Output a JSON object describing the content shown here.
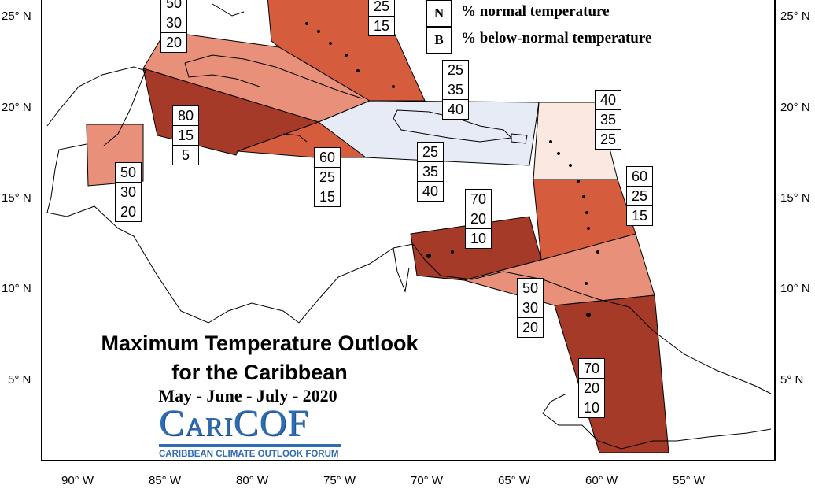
{
  "map": {
    "title_line1": "Maximum Temperature Outlook",
    "title_line2": "for the Caribbean",
    "period": "May - June - July - 2020",
    "logo_name": "CariCOF",
    "logo_tagline": "CARIBBEAN CLIMATE OUTLOOK FORUM",
    "legend": [
      {
        "key": "N",
        "label": "% normal temperature"
      },
      {
        "key": "B",
        "label": "% below-normal temperature"
      }
    ],
    "lat_labels": [
      "25° N",
      "20° N",
      "15° N",
      "10° N",
      "5° N"
    ],
    "lon_labels": [
      "90° W",
      "85° W",
      "80° W",
      "75° W",
      "70° W",
      "65° W",
      "60° W",
      "55° W"
    ],
    "colors": {
      "above_80_70": "#a63a28",
      "above_60": "#d55c3c",
      "above_50": "#e8907a",
      "above_40": "#fbe8e0",
      "below_leaning": "#e6ebf5",
      "border": "#000000"
    },
    "probability_boxes": [
      {
        "id": "bahamas-west",
        "values": [
          "50",
          "30",
          "20"
        ]
      },
      {
        "id": "bahamas-east",
        "values": [
          "25",
          "15"
        ]
      },
      {
        "id": "hispaniola-north",
        "values": [
          "25",
          "35",
          "40"
        ]
      },
      {
        "id": "northern-leewards",
        "values": [
          "40",
          "35",
          "25"
        ]
      },
      {
        "id": "western-cuba",
        "values": [
          "80",
          "15",
          "5"
        ]
      },
      {
        "id": "jamaica",
        "values": [
          "60",
          "25",
          "15"
        ]
      },
      {
        "id": "hispaniola",
        "values": [
          "25",
          "35",
          "40"
        ]
      },
      {
        "id": "windwards",
        "values": [
          "60",
          "25",
          "15"
        ]
      },
      {
        "id": "belize",
        "values": [
          "50",
          "30",
          "20"
        ]
      },
      {
        "id": "abc-islands",
        "values": [
          "70",
          "20",
          "10"
        ]
      },
      {
        "id": "trinidad",
        "values": [
          "50",
          "30",
          "20"
        ]
      },
      {
        "id": "guianas",
        "values": [
          "70",
          "20",
          "10"
        ]
      }
    ]
  }
}
